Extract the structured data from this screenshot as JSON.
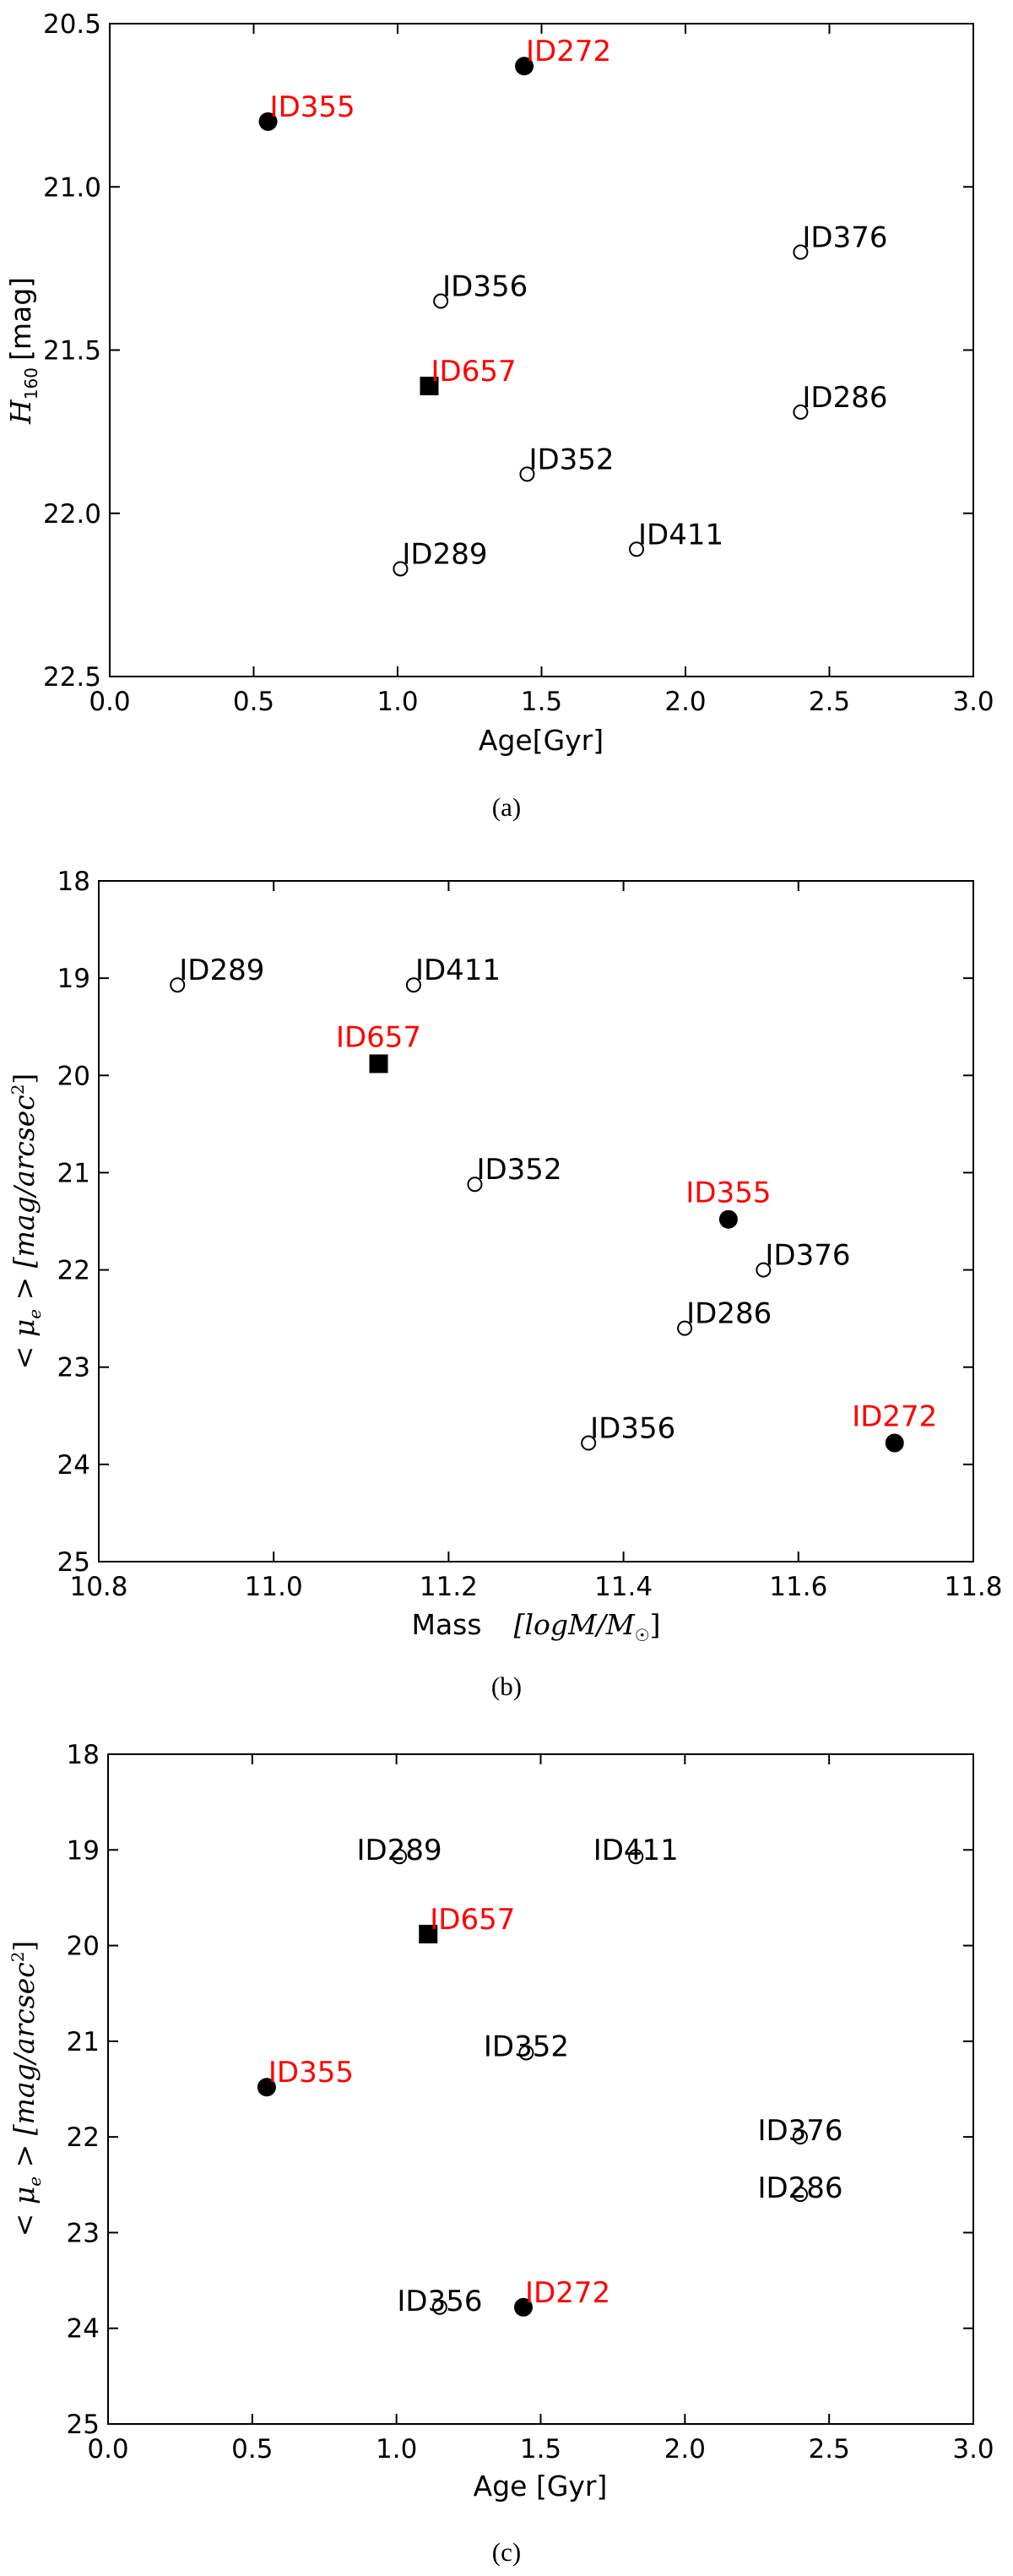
{
  "colors": {
    "highlight": "#ff0000",
    "normal": "#000000",
    "marker_fill": "#000000",
    "open_fill": "#ffffff"
  },
  "chart_data": [
    {
      "type": "scatter",
      "caption": "(a)",
      "xlabel": "Age[Gyr]",
      "ylabel": {
        "symbol": "H",
        "subscript": "160",
        "unit": "[mag]"
      },
      "xlim": [
        0.0,
        3.0
      ],
      "ylim": [
        22.5,
        20.5
      ],
      "y_inverted": true,
      "xticks": [
        "0.0",
        "0.5",
        "1.0",
        "1.5",
        "2.0",
        "2.5",
        "3.0"
      ],
      "yticks": [
        "20.5",
        "21.0",
        "21.5",
        "22.0",
        "22.5"
      ],
      "points": [
        {
          "id": "ID272",
          "x": 1.44,
          "y": 20.63,
          "marker": "filled-circle",
          "label_color": "red",
          "label_pos": "right"
        },
        {
          "id": "ID355",
          "x": 0.55,
          "y": 20.8,
          "marker": "filled-circle",
          "label_color": "red",
          "label_pos": "right"
        },
        {
          "id": "ID376",
          "x": 2.4,
          "y": 21.2,
          "marker": "open-circle",
          "label_color": "black",
          "label_pos": "right"
        },
        {
          "id": "ID356",
          "x": 1.15,
          "y": 21.35,
          "marker": "open-circle",
          "label_color": "black",
          "label_pos": "right"
        },
        {
          "id": "ID657",
          "x": 1.11,
          "y": 21.61,
          "marker": "filled-square",
          "label_color": "red",
          "label_pos": "right"
        },
        {
          "id": "ID286",
          "x": 2.4,
          "y": 21.69,
          "marker": "open-circle",
          "label_color": "black",
          "label_pos": "right"
        },
        {
          "id": "ID352",
          "x": 1.45,
          "y": 21.88,
          "marker": "open-circle",
          "label_color": "black",
          "label_pos": "right"
        },
        {
          "id": "ID411",
          "x": 1.83,
          "y": 22.11,
          "marker": "open-circle",
          "label_color": "black",
          "label_pos": "right"
        },
        {
          "id": "ID289",
          "x": 1.01,
          "y": 22.17,
          "marker": "open-circle",
          "label_color": "black",
          "label_pos": "right"
        }
      ]
    },
    {
      "type": "scatter",
      "caption": "(b)",
      "xlabel": {
        "text": "Mass",
        "math": "[logM/M",
        "sun": "☉",
        "close": "]"
      },
      "ylabel": {
        "text": "< μ",
        "subscript": "e",
        "rest": " > [mag/arcsec",
        "superscript": "2",
        "close": "]"
      },
      "xlim": [
        10.8,
        11.8
      ],
      "ylim": [
        25,
        18
      ],
      "y_inverted": true,
      "xticks": [
        "10.8",
        "11.0",
        "11.2",
        "11.4",
        "11.6",
        "11.8"
      ],
      "yticks": [
        "18",
        "19",
        "20",
        "21",
        "22",
        "23",
        "24",
        "25"
      ],
      "points": [
        {
          "id": "ID289",
          "x": 10.89,
          "y": 19.07,
          "marker": "open-circle",
          "label_color": "black",
          "label_pos": "right"
        },
        {
          "id": "ID411",
          "x": 11.16,
          "y": 19.07,
          "marker": "open-circle",
          "label_color": "black",
          "label_pos": "right"
        },
        {
          "id": "ID657",
          "x": 11.12,
          "y": 19.88,
          "marker": "filled-square",
          "label_color": "red",
          "label_pos": "above"
        },
        {
          "id": "ID352",
          "x": 11.23,
          "y": 21.12,
          "marker": "open-circle",
          "label_color": "black",
          "label_pos": "right"
        },
        {
          "id": "ID355",
          "x": 11.52,
          "y": 21.48,
          "marker": "filled-circle",
          "label_color": "red",
          "label_pos": "above"
        },
        {
          "id": "ID376",
          "x": 11.56,
          "y": 22.0,
          "marker": "open-circle",
          "label_color": "black",
          "label_pos": "right"
        },
        {
          "id": "ID286",
          "x": 11.47,
          "y": 22.6,
          "marker": "open-circle",
          "label_color": "black",
          "label_pos": "right"
        },
        {
          "id": "ID356",
          "x": 11.36,
          "y": 23.78,
          "marker": "open-circle",
          "label_color": "black",
          "label_pos": "right"
        },
        {
          "id": "ID272",
          "x": 11.71,
          "y": 23.78,
          "marker": "filled-circle",
          "label_color": "red",
          "label_pos": "above"
        }
      ]
    },
    {
      "type": "scatter",
      "caption": "(c)",
      "xlabel": "Age [Gyr]",
      "ylabel": {
        "text": "< μ",
        "subscript": "e",
        "rest": " > [mag/arcsec",
        "superscript": "2",
        "close": "]"
      },
      "xlim": [
        0.0,
        3.0
      ],
      "ylim": [
        25,
        18
      ],
      "y_inverted": true,
      "xticks": [
        "0.0",
        "0.5",
        "1.0",
        "1.5",
        "2.0",
        "2.5",
        "3.0"
      ],
      "yticks": [
        "18",
        "19",
        "20",
        "21",
        "22",
        "23",
        "24",
        "25"
      ],
      "points": [
        {
          "id": "ID289",
          "x": 1.01,
          "y": 19.07,
          "marker": "open-circle",
          "label_color": "black",
          "label_pos": "center"
        },
        {
          "id": "ID411",
          "x": 1.83,
          "y": 19.07,
          "marker": "open-circle",
          "label_color": "black",
          "label_pos": "center"
        },
        {
          "id": "ID657",
          "x": 1.11,
          "y": 19.88,
          "marker": "filled-square",
          "label_color": "red",
          "label_pos": "right"
        },
        {
          "id": "ID352",
          "x": 1.45,
          "y": 21.12,
          "marker": "open-circle",
          "label_color": "black",
          "label_pos": "center"
        },
        {
          "id": "ID355",
          "x": 0.55,
          "y": 21.48,
          "marker": "filled-circle",
          "label_color": "red",
          "label_pos": "right"
        },
        {
          "id": "ID376",
          "x": 2.4,
          "y": 22.0,
          "marker": "open-circle",
          "label_color": "black",
          "label_pos": "center"
        },
        {
          "id": "ID286",
          "x": 2.4,
          "y": 22.6,
          "marker": "open-circle",
          "label_color": "black",
          "label_pos": "center"
        },
        {
          "id": "ID356",
          "x": 1.15,
          "y": 23.78,
          "marker": "open-circle",
          "label_color": "black",
          "label_pos": "center"
        },
        {
          "id": "ID272",
          "x": 1.44,
          "y": 23.78,
          "marker": "filled-circle",
          "label_color": "red",
          "label_pos": "right"
        }
      ]
    }
  ]
}
